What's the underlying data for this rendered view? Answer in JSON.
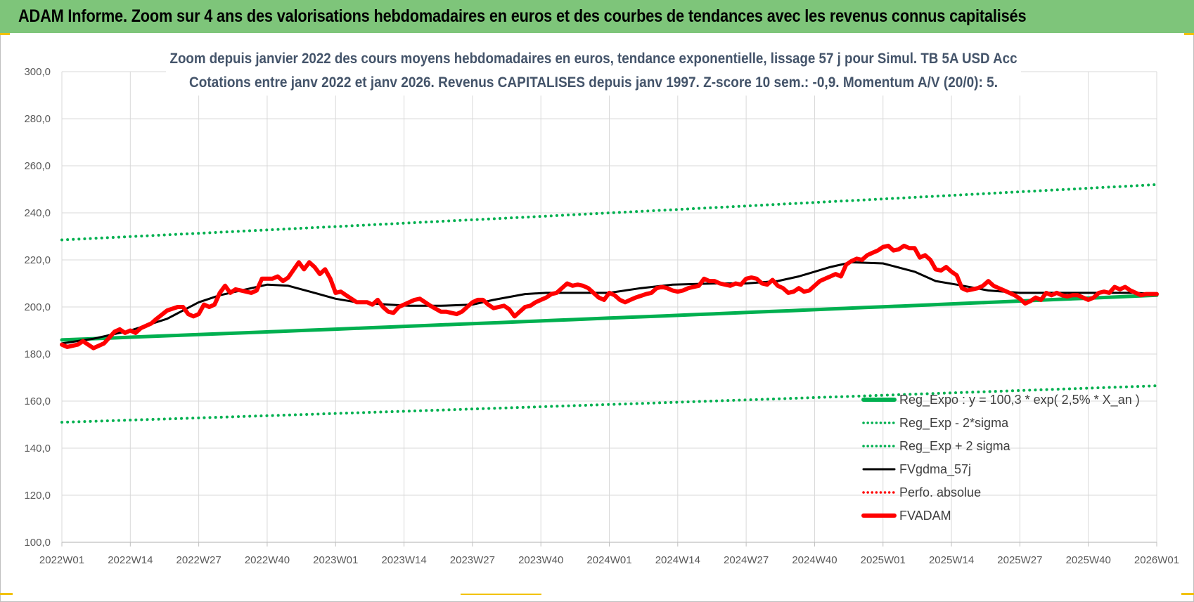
{
  "header": {
    "title": "ADAM Informe. Zoom sur 4 ans des valorisations hebdomadaires en euros et des courbes de tendances avec les revenus connus capitalisés"
  },
  "colors": {
    "banner": "#7ec57a",
    "regression": "#00b050",
    "smoothing": "#000000",
    "price": "#ff0000",
    "grid": "#d9d9d9"
  },
  "chart_data": {
    "type": "line",
    "title_line1": "Zoom depuis janvier 2022 des cours moyens hebdomadaires en euros, tendance exponentielle, lissage 57 j pour Simul. TB 5A USD Acc",
    "title_line2": "Cotations entre janv 2022 et janv 2026. Revenus CAPITALISES depuis janv 1997. Z-score 10 sem.: -0,9. Momentum A/V (20/0): 5.",
    "x_tick_labels": [
      "2022W01",
      "2022W14",
      "2022W27",
      "2022W40",
      "2023W01",
      "2023W14",
      "2023W27",
      "2023W40",
      "2024W01",
      "2024W14",
      "2024W27",
      "2024W40",
      "2025W01",
      "2025W14",
      "2025W27",
      "2025W40",
      "2026W01"
    ],
    "y_tick_labels": [
      "100,0",
      "120,0",
      "140,0",
      "160,0",
      "180,0",
      "200,0",
      "220,0",
      "240,0",
      "260,0",
      "280,0",
      "300,0"
    ],
    "ylim": [
      100,
      300
    ],
    "grid": true,
    "legend_position": "bottom-right",
    "legend": [
      {
        "label": "Reg_Expo : y = 100,3 * exp( 2,5% *  X_an )",
        "style": "thick-solid",
        "color": "#00b050"
      },
      {
        "label": "Reg_Exp - 2*sigma",
        "style": "dotted",
        "color": "#00b050"
      },
      {
        "label": "Reg_Exp + 2 sigma",
        "style": "dotted",
        "color": "#00b050"
      },
      {
        "label": "FVgdma_57j",
        "style": "solid",
        "color": "#000000"
      },
      {
        "label": "Perfo. absolue",
        "style": "dotted",
        "color": "#ff0000"
      },
      {
        "label": "FVADAM",
        "style": "thick-solid",
        "color": "#ff0000"
      }
    ],
    "series": [
      {
        "name": "Reg_Expo : y = 100,3 * exp( 2,5% *  X_an )",
        "style": "thick-solid",
        "color": "#00b050",
        "points": [
          [
            0,
            186
          ],
          [
            208,
            205
          ]
        ]
      },
      {
        "name": "Reg_Exp - 2*sigma",
        "style": "dotted",
        "color": "#00b050",
        "points": [
          [
            0,
            151
          ],
          [
            208,
            166.5
          ]
        ]
      },
      {
        "name": "Reg_Exp + 2 sigma",
        "style": "dotted",
        "color": "#00b050",
        "points": [
          [
            0,
            228.5
          ],
          [
            208,
            252
          ]
        ]
      },
      {
        "name": "FVgdma_57j",
        "style": "solid",
        "color": "#000000",
        "points": [
          [
            0,
            184.5
          ],
          [
            6,
            186.5
          ],
          [
            13,
            190
          ],
          [
            20,
            195
          ],
          [
            26,
            202
          ],
          [
            30,
            205
          ],
          [
            36,
            208
          ],
          [
            39,
            209.5
          ],
          [
            43,
            209
          ],
          [
            48,
            206
          ],
          [
            52,
            203.5
          ],
          [
            56,
            202
          ],
          [
            62,
            201
          ],
          [
            66,
            200.5
          ],
          [
            72,
            200.5
          ],
          [
            78,
            201
          ],
          [
            82,
            203
          ],
          [
            88,
            205.5
          ],
          [
            92,
            206
          ],
          [
            104,
            206
          ],
          [
            110,
            208
          ],
          [
            116,
            209.5
          ],
          [
            124,
            210
          ],
          [
            130,
            210
          ],
          [
            136,
            211
          ],
          [
            140,
            213
          ],
          [
            146,
            217
          ],
          [
            150,
            219
          ],
          [
            156,
            218.5
          ],
          [
            162,
            215
          ],
          [
            166,
            211
          ],
          [
            170,
            209.5
          ],
          [
            176,
            207
          ],
          [
            182,
            206
          ],
          [
            190,
            206
          ],
          [
            198,
            206
          ],
          [
            204,
            206
          ],
          [
            208,
            205.5
          ]
        ]
      },
      {
        "name": "FVADAM",
        "style": "thick-solid",
        "color": "#ff0000",
        "points": [
          [
            0,
            184
          ],
          [
            1,
            183
          ],
          [
            3,
            184
          ],
          [
            4,
            185.5
          ],
          [
            5,
            184
          ],
          [
            6,
            182.5
          ],
          [
            8,
            184.5
          ],
          [
            9,
            187
          ],
          [
            10,
            189.5
          ],
          [
            11,
            190.5
          ],
          [
            12,
            189
          ],
          [
            13,
            190
          ],
          [
            14,
            189
          ],
          [
            15,
            191
          ],
          [
            17,
            193
          ],
          [
            18,
            195
          ],
          [
            20,
            198.5
          ],
          [
            22,
            200
          ],
          [
            23,
            200
          ],
          [
            24,
            197
          ],
          [
            25,
            196
          ],
          [
            26,
            197
          ],
          [
            27,
            201
          ],
          [
            28,
            200
          ],
          [
            29,
            201
          ],
          [
            30,
            206
          ],
          [
            31,
            209
          ],
          [
            32,
            206
          ],
          [
            33,
            207.5
          ],
          [
            34,
            207
          ],
          [
            36,
            206
          ],
          [
            37,
            207
          ],
          [
            38,
            212
          ],
          [
            40,
            212
          ],
          [
            41,
            213
          ],
          [
            42,
            211
          ],
          [
            43,
            212.5
          ],
          [
            45,
            219
          ],
          [
            46,
            216
          ],
          [
            47,
            219
          ],
          [
            48,
            217
          ],
          [
            49,
            214
          ],
          [
            50,
            216
          ],
          [
            51,
            212
          ],
          [
            52,
            206
          ],
          [
            53,
            206.5
          ],
          [
            54,
            205
          ],
          [
            56,
            202
          ],
          [
            58,
            202
          ],
          [
            59,
            201
          ],
          [
            60,
            203
          ],
          [
            61,
            200
          ],
          [
            62,
            198
          ],
          [
            63,
            197.5
          ],
          [
            64,
            200
          ],
          [
            65,
            201
          ],
          [
            66,
            202
          ],
          [
            67,
            203
          ],
          [
            68,
            203.5
          ],
          [
            69,
            202
          ],
          [
            70,
            200.5
          ],
          [
            72,
            198
          ],
          [
            73,
            198
          ],
          [
            74,
            197.5
          ],
          [
            75,
            197
          ],
          [
            76,
            198
          ],
          [
            78,
            202
          ],
          [
            79,
            203
          ],
          [
            80,
            203
          ],
          [
            81,
            201
          ],
          [
            82,
            199.5
          ],
          [
            83,
            200
          ],
          [
            84,
            200.5
          ],
          [
            85,
            199
          ],
          [
            86,
            196
          ],
          [
            87,
            198
          ],
          [
            88,
            200
          ],
          [
            89,
            200.5
          ],
          [
            90,
            202
          ],
          [
            91,
            203
          ],
          [
            92,
            204
          ],
          [
            93,
            205.5
          ],
          [
            94,
            206
          ],
          [
            95,
            208
          ],
          [
            96,
            210
          ],
          [
            97,
            209
          ],
          [
            98,
            209.5
          ],
          [
            99,
            209
          ],
          [
            100,
            208
          ],
          [
            101,
            206
          ],
          [
            102,
            204
          ],
          [
            103,
            203
          ],
          [
            104,
            206
          ],
          [
            105,
            205
          ],
          [
            106,
            203
          ],
          [
            107,
            202
          ],
          [
            108,
            203
          ],
          [
            109,
            204
          ],
          [
            111,
            205.5
          ],
          [
            112,
            206
          ],
          [
            113,
            208
          ],
          [
            114,
            208.5
          ],
          [
            115,
            208
          ],
          [
            116,
            207
          ],
          [
            117,
            206.5
          ],
          [
            118,
            207
          ],
          [
            119,
            208
          ],
          [
            120,
            208.5
          ],
          [
            121,
            209
          ],
          [
            122,
            212
          ],
          [
            123,
            211
          ],
          [
            124,
            211
          ],
          [
            125,
            210
          ],
          [
            126,
            209.5
          ],
          [
            127,
            209
          ],
          [
            128,
            210
          ],
          [
            129,
            209.5
          ],
          [
            130,
            212
          ],
          [
            131,
            212.5
          ],
          [
            132,
            212
          ],
          [
            133,
            210
          ],
          [
            134,
            209.5
          ],
          [
            135,
            211.5
          ],
          [
            136,
            209
          ],
          [
            137,
            208
          ],
          [
            138,
            206
          ],
          [
            139,
            206.5
          ],
          [
            140,
            208
          ],
          [
            141,
            206.5
          ],
          [
            142,
            207
          ],
          [
            143,
            209
          ],
          [
            144,
            211
          ],
          [
            145,
            212
          ],
          [
            146,
            213
          ],
          [
            147,
            214
          ],
          [
            148,
            213
          ],
          [
            149,
            218
          ],
          [
            150,
            219.5
          ],
          [
            151,
            220.5
          ],
          [
            152,
            220
          ],
          [
            153,
            222
          ],
          [
            154,
            223
          ],
          [
            155,
            224
          ],
          [
            156,
            225.5
          ],
          [
            157,
            226
          ],
          [
            158,
            224
          ],
          [
            159,
            224.5
          ],
          [
            160,
            226
          ],
          [
            161,
            225
          ],
          [
            162,
            225
          ],
          [
            163,
            221
          ],
          [
            164,
            222
          ],
          [
            165,
            220
          ],
          [
            166,
            216
          ],
          [
            167,
            215.5
          ],
          [
            168,
            217
          ],
          [
            169,
            215
          ],
          [
            170,
            213.5
          ],
          [
            171,
            208
          ],
          [
            172,
            207
          ],
          [
            173,
            207.5
          ],
          [
            174,
            208
          ],
          [
            175,
            209
          ],
          [
            176,
            211
          ],
          [
            177,
            209
          ],
          [
            178,
            208
          ],
          [
            179,
            207
          ],
          [
            180,
            206
          ],
          [
            181,
            205
          ],
          [
            182,
            203.5
          ],
          [
            183,
            201.5
          ],
          [
            184,
            202.5
          ],
          [
            185,
            204
          ],
          [
            186,
            203
          ],
          [
            187,
            206
          ],
          [
            188,
            205
          ],
          [
            189,
            206
          ],
          [
            190,
            205
          ],
          [
            191,
            204.5
          ],
          [
            192,
            205
          ],
          [
            193,
            205
          ],
          [
            194,
            204
          ],
          [
            195,
            203
          ],
          [
            196,
            204
          ],
          [
            197,
            206
          ],
          [
            198,
            206.5
          ],
          [
            199,
            206
          ],
          [
            200,
            208.5
          ],
          [
            201,
            207.5
          ],
          [
            202,
            208.5
          ],
          [
            203,
            207
          ],
          [
            204,
            206
          ],
          [
            205,
            205
          ],
          [
            206,
            205.5
          ],
          [
            208,
            205.5
          ]
        ]
      }
    ]
  }
}
